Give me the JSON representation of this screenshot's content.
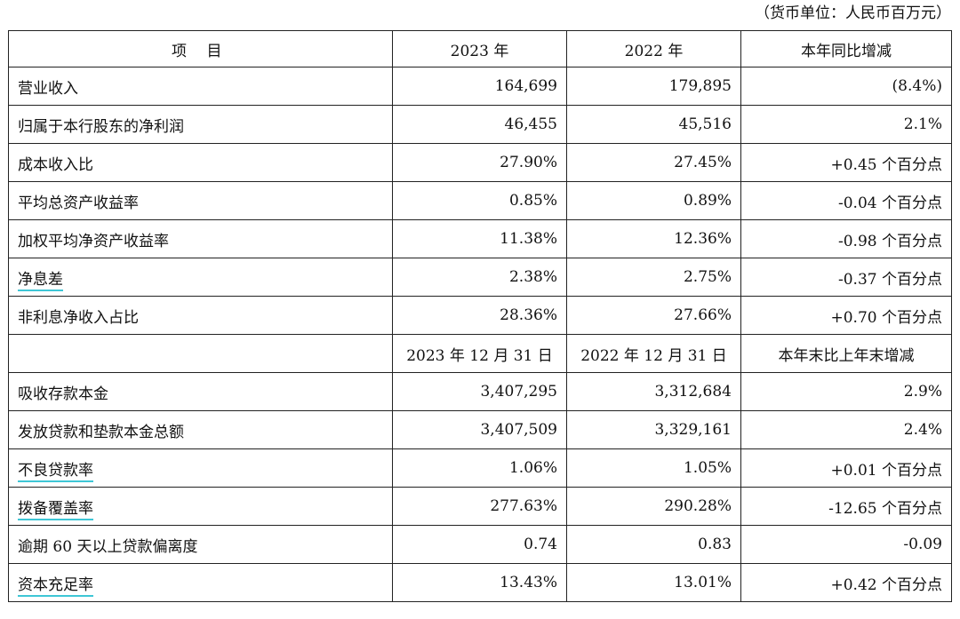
{
  "unit_note": "（货币单位：人民币百万元）",
  "header": {
    "item": "项 目",
    "year_2023": "2023 年",
    "year_2022": "2022 年",
    "change": "本年同比增减"
  },
  "rows_a": [
    {
      "label": "营业收入",
      "v2023": "164,699",
      "v2022": "179,895",
      "change": "(8.4%)",
      "underlined": false
    },
    {
      "label": "归属于本行股东的净利润",
      "v2023": "46,455",
      "v2022": "45,516",
      "change": "2.1%",
      "underlined": false
    },
    {
      "label": "成本收入比",
      "v2023": "27.90%",
      "v2022": "27.45%",
      "change": "+0.45 个百分点",
      "underlined": false
    },
    {
      "label": "平均总资产收益率",
      "v2023": "0.85%",
      "v2022": "0.89%",
      "change": "-0.04 个百分点",
      "underlined": false
    },
    {
      "label": "加权平均净资产收益率",
      "v2023": "11.38%",
      "v2022": "12.36%",
      "change": "-0.98 个百分点",
      "underlined": false
    },
    {
      "label": "净息差",
      "v2023": "2.38%",
      "v2022": "2.75%",
      "change": "-0.37 个百分点",
      "underlined": true
    },
    {
      "label": "非利息净收入占比",
      "v2023": "28.36%",
      "v2022": "27.66%",
      "change": "+0.70 个百分点",
      "underlined": false
    }
  ],
  "subheader": {
    "date_2023": "2023 年 12 月 31 日",
    "date_2022": "2022 年 12 月 31 日",
    "change": "本年末比上年末增减"
  },
  "rows_b": [
    {
      "label": "吸收存款本金",
      "v2023": "3,407,295",
      "v2022": "3,312,684",
      "change": "2.9%",
      "underlined": false
    },
    {
      "label": "发放贷款和垫款本金总额",
      "v2023": "3,407,509",
      "v2022": "3,329,161",
      "change": "2.4%",
      "underlined": false
    },
    {
      "label": "不良贷款率",
      "v2023": "1.06%",
      "v2022": "1.05%",
      "change": "+0.01 个百分点",
      "underlined": true
    },
    {
      "label": "拨备覆盖率",
      "v2023": "277.63%",
      "v2022": "290.28%",
      "change": "-12.65 个百分点",
      "underlined": true
    },
    {
      "label": "逾期 60 天以上贷款偏离度",
      "v2023": "0.74",
      "v2022": "0.83",
      "change": "-0.09",
      "underlined": false
    },
    {
      "label": "资本充足率",
      "v2023": "13.43%",
      "v2022": "13.01%",
      "change": "+0.42 个百分点",
      "underlined": true
    }
  ],
  "colors": {
    "underline_accent": "#3ec6d6",
    "border": "#222222"
  }
}
